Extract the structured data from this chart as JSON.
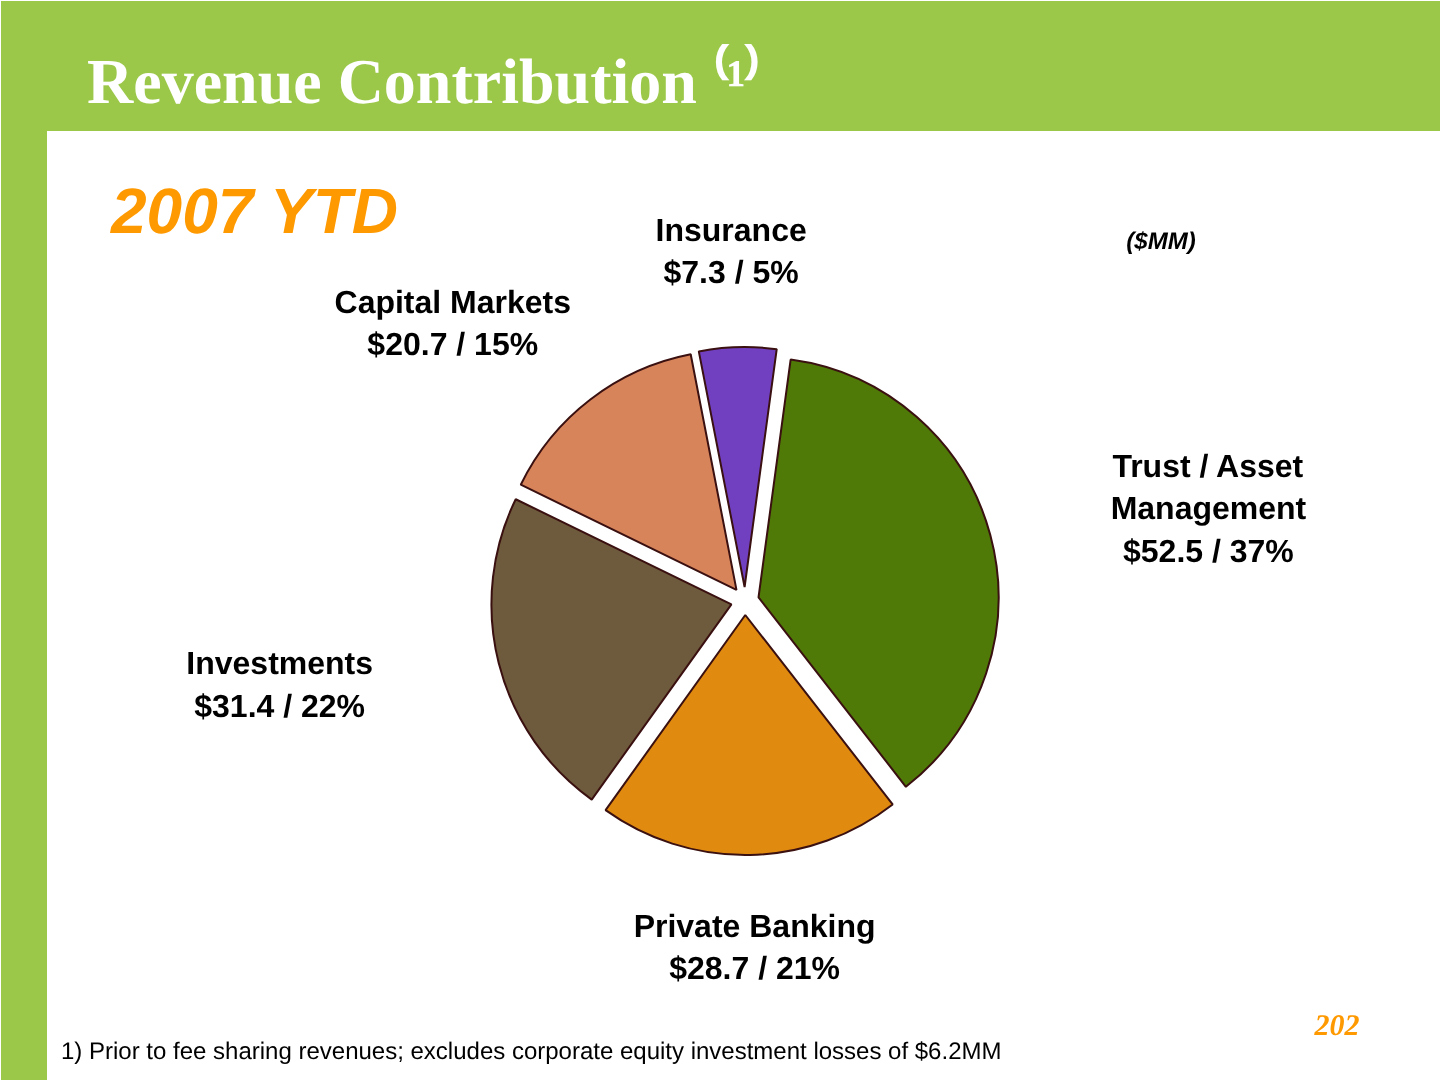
{
  "chart_data": {
    "type": "pie",
    "title": "Revenue Contribution ⁽¹⁾",
    "subtitle": "2007 YTD",
    "categories": [
      "Insurance",
      "Trust / Asset Management",
      "Private Banking",
      "Investments",
      "Capital Markets"
    ],
    "values": [
      7.3,
      52.5,
      28.7,
      31.4,
      20.7
    ],
    "value_labels": [
      "$7.3 / 5%",
      "$52.5 / 37%",
      "$28.7 / 21%",
      "$31.4 / 22%",
      "$20.7 / 15%"
    ],
    "colors": [
      "#7040c0",
      "#4f7a08",
      "#e08a10",
      "#6e5a3c",
      "#d8845a"
    ],
    "annotations": [
      "($MM)",
      "1) Prior to fee sharing revenues; excludes corporate equity investment losses of $6.2MM",
      "202"
    ]
  }
}
